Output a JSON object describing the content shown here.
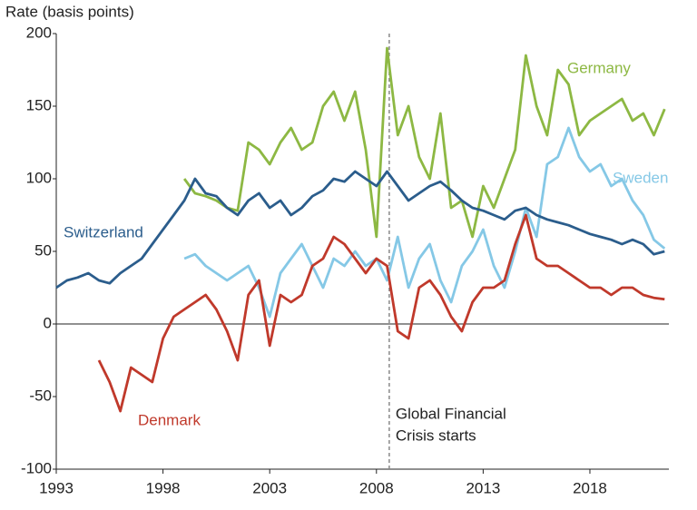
{
  "chart_data": {
    "type": "line",
    "y_label": "Rate (basis points)",
    "x": [
      1993,
      1993.5,
      1994,
      1994.5,
      1995,
      1995.5,
      1996,
      1996.5,
      1997,
      1997.5,
      1998,
      1998.5,
      1999,
      1999.5,
      2000,
      2000.5,
      2001,
      2001.5,
      2002,
      2002.5,
      2003,
      2003.5,
      2004,
      2004.5,
      2005,
      2005.5,
      2006,
      2006.5,
      2007,
      2007.5,
      2008,
      2008.5,
      2009,
      2009.5,
      2010,
      2010.5,
      2011,
      2011.5,
      2012,
      2012.5,
      2013,
      2013.5,
      2014,
      2014.5,
      2015,
      2015.5,
      2016,
      2016.5,
      2017,
      2017.5,
      2018,
      2018.5,
      2019,
      2019.5,
      2020,
      2020.5,
      2021,
      2021.5
    ],
    "series": [
      {
        "name": "Germany",
        "color": "#8db843",
        "values": [
          null,
          null,
          null,
          null,
          null,
          null,
          null,
          null,
          null,
          null,
          null,
          null,
          100,
          90,
          88,
          85,
          80,
          78,
          125,
          120,
          110,
          125,
          135,
          120,
          125,
          150,
          160,
          140,
          160,
          120,
          60,
          190,
          130,
          150,
          115,
          100,
          145,
          80,
          85,
          60,
          95,
          80,
          100,
          120,
          185,
          150,
          130,
          175,
          165,
          130,
          140,
          145,
          150,
          155,
          140,
          145,
          130,
          148
        ]
      },
      {
        "name": "Sweden",
        "color": "#85c8e6",
        "values": [
          null,
          null,
          null,
          null,
          null,
          null,
          null,
          null,
          null,
          null,
          null,
          null,
          45,
          48,
          40,
          35,
          30,
          35,
          40,
          25,
          5,
          35,
          45,
          55,
          40,
          25,
          45,
          40,
          50,
          40,
          45,
          30,
          60,
          25,
          45,
          55,
          30,
          15,
          40,
          50,
          65,
          40,
          25,
          50,
          80,
          60,
          110,
          115,
          135,
          115,
          105,
          110,
          95,
          100,
          85,
          75,
          58,
          52
        ]
      },
      {
        "name": "Switzerland",
        "color": "#2b5d8c",
        "values": [
          25,
          30,
          32,
          35,
          30,
          28,
          35,
          40,
          45,
          55,
          65,
          75,
          85,
          100,
          90,
          88,
          80,
          75,
          85,
          90,
          80,
          85,
          75,
          80,
          88,
          92,
          100,
          98,
          105,
          100,
          95,
          105,
          95,
          85,
          90,
          95,
          98,
          92,
          85,
          80,
          78,
          75,
          72,
          78,
          80,
          75,
          72,
          70,
          68,
          65,
          62,
          60,
          58,
          55,
          58,
          55,
          48,
          50
        ]
      },
      {
        "name": "Denmark",
        "color": "#c0392b",
        "values": [
          null,
          null,
          null,
          null,
          -25,
          -40,
          -60,
          -30,
          -35,
          -40,
          -10,
          5,
          10,
          15,
          20,
          10,
          -5,
          -25,
          20,
          30,
          -15,
          20,
          15,
          20,
          40,
          45,
          60,
          55,
          45,
          35,
          45,
          40,
          -5,
          -10,
          25,
          30,
          20,
          5,
          -5,
          15,
          25,
          25,
          30,
          55,
          75,
          45,
          40,
          40,
          35,
          30,
          25,
          25,
          20,
          25,
          25,
          20,
          18,
          17
        ]
      }
    ],
    "annotation": {
      "x": 2008.6,
      "text": [
        "Global Financial",
        "Crisis starts"
      ]
    },
    "xlim": [
      1993,
      2021.7
    ],
    "xticks": [
      1993,
      1998,
      2003,
      2008,
      2013,
      2018
    ],
    "ylim": [
      -100,
      200
    ],
    "yticks": [
      -100,
      -50,
      0,
      50,
      100,
      150,
      200
    ]
  }
}
